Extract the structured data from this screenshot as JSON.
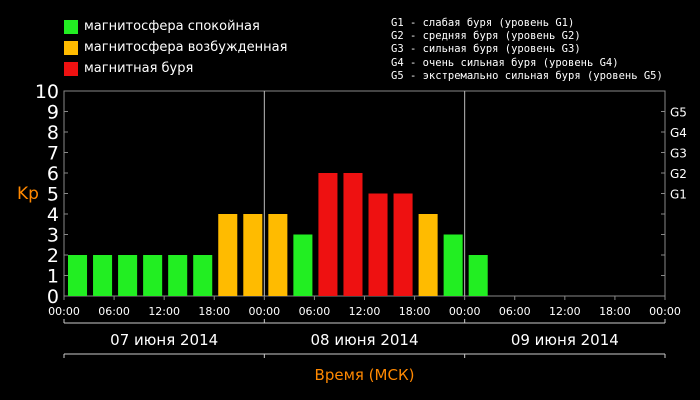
{
  "legend": [
    {
      "label": "магнитосфера спокойная",
      "color": "#22ee22"
    },
    {
      "label": "магнитосфера возбужденная",
      "color": "#ffbb00"
    },
    {
      "label": "магнитная буря",
      "color": "#ee1111"
    }
  ],
  "g_levels": [
    "G1 - слабая буря (уровень G1)",
    "G2 - средняя буря (уровень G2)",
    "G3 - сильная буря (уровень G3)",
    "G4 - очень сильная буря (уровень G4)",
    "G5 - экстремально сильная буря (уровень G5)"
  ],
  "chart_data": {
    "type": "bar",
    "ylabel": "Kp",
    "xlabel": "Время (МСК)",
    "ylim": [
      0,
      10
    ],
    "yticks": [
      "0",
      "1",
      "2",
      "3",
      "4",
      "5",
      "6",
      "7",
      "8",
      "9",
      "10"
    ],
    "g_ticks": [
      {
        "label": "G1",
        "value": 5
      },
      {
        "label": "G2",
        "value": 6
      },
      {
        "label": "G3",
        "value": 7
      },
      {
        "label": "G4",
        "value": 8
      },
      {
        "label": "G5",
        "value": 9
      }
    ],
    "xticks": [
      "00:00",
      "06:00",
      "12:00",
      "18:00",
      "00:00",
      "06:00",
      "12:00",
      "18:00",
      "00:00",
      "06:00",
      "12:00",
      "18:00",
      "00:00"
    ],
    "days": [
      "07 июня 2014",
      "08 июня 2014",
      "09 июня 2014"
    ],
    "interval_hours": 3,
    "values": [
      2,
      2,
      2,
      2,
      2,
      2,
      4,
      4,
      4,
      3,
      6,
      6,
      5,
      5,
      4,
      3,
      2
    ],
    "colors": {
      "quiet": "#22ee22",
      "active": "#ffbb00",
      "storm": "#ee1111"
    },
    "axis_color": "#ff8800"
  }
}
